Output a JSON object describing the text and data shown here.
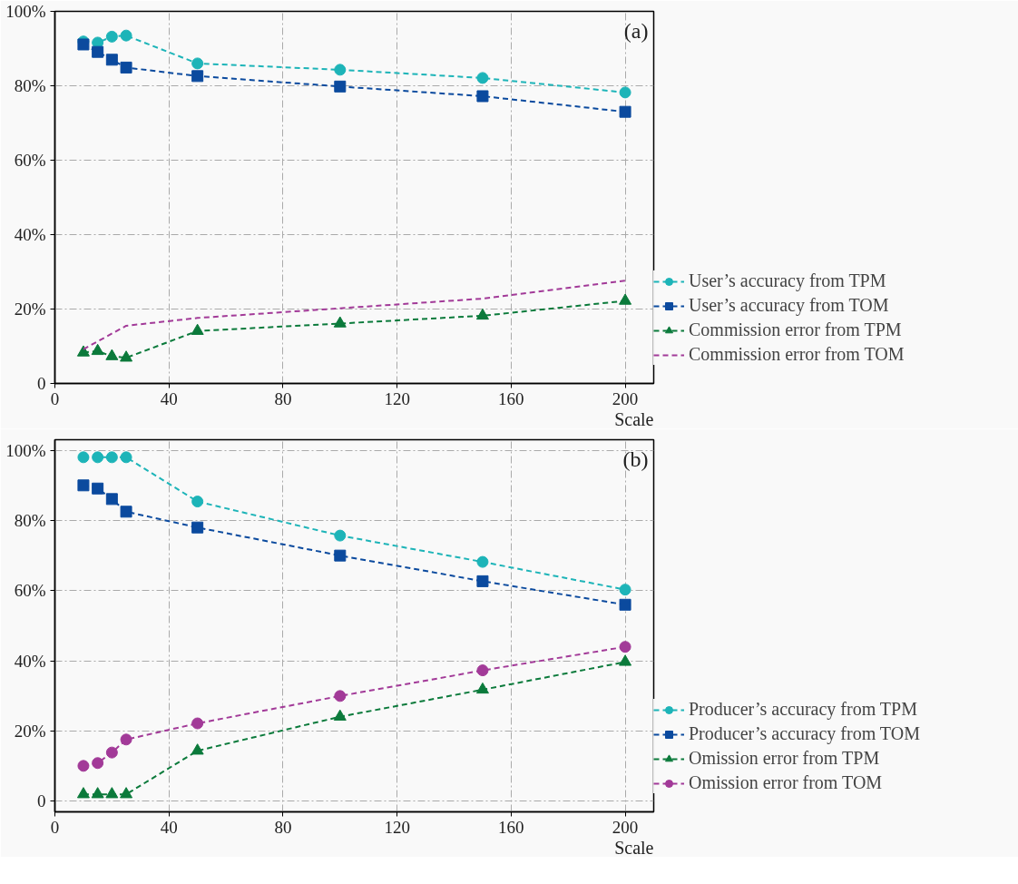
{
  "chart_data": [
    {
      "type": "line",
      "xlabel": "Scale",
      "annotations": [
        "(a)"
      ],
      "x": [
        10,
        15,
        20,
        25,
        50,
        100,
        150,
        200
      ],
      "xlim": [
        0,
        210
      ],
      "xticks": [
        0,
        40,
        80,
        120,
        160,
        200
      ],
      "ylim": [
        0,
        100
      ],
      "yticks": [
        0,
        {
          "value": 20,
          "label": "20%"
        },
        {
          "value": 40,
          "label": "40%"
        },
        {
          "value": 60,
          "label": "60%"
        },
        {
          "value": 80,
          "label": "80%"
        },
        {
          "value": 100,
          "label": "100%"
        }
      ],
      "grid": true,
      "legend": "right",
      "line_style": "dashed",
      "series": [
        {
          "name": "User’s accuracy from TPM",
          "color": "#1db4b8",
          "marker": "circle",
          "values": [
            91.9,
            91.6,
            93.2,
            93.5,
            86.0,
            84.3,
            82.1,
            78.2
          ]
        },
        {
          "name": "User’s accuracy from TOM",
          "color": "#0b4a9e",
          "marker": "square",
          "values": [
            91.1,
            89.1,
            87.0,
            84.9,
            82.6,
            79.8,
            77.2,
            73.0
          ]
        },
        {
          "name": "Commission error from TPM",
          "color": "#0b7a3b",
          "marker": "triangle",
          "values": [
            8.3,
            8.7,
            7.3,
            6.9,
            14.1,
            16.1,
            18.2,
            22.2
          ]
        },
        {
          "name": "Commission error from TOM",
          "color": "#a23a98",
          "marker": "none",
          "x": [
            10,
            25,
            50,
            100,
            150,
            200
          ],
          "values": [
            9.2,
            15.5,
            17.6,
            20.2,
            22.8,
            27.6
          ]
        }
      ]
    },
    {
      "type": "line",
      "xlabel": "Scale",
      "annotations": [
        "(b)"
      ],
      "x": [
        10,
        15,
        20,
        25,
        50,
        100,
        150,
        200
      ],
      "xlim": [
        0,
        210
      ],
      "xticks": [
        0,
        40,
        80,
        120,
        160,
        200
      ],
      "ylim": [
        -3,
        103
      ],
      "yticks": [
        0,
        {
          "value": 20,
          "label": "20%"
        },
        {
          "value": 40,
          "label": "40%"
        },
        {
          "value": 60,
          "label": "60%"
        },
        {
          "value": 80,
          "label": "80%"
        },
        {
          "value": 100,
          "label": "100%"
        }
      ],
      "grid": true,
      "legend": "right",
      "line_style": "dashed",
      "series": [
        {
          "name": "Producer’s accuracy from TPM",
          "color": "#1db4b8",
          "marker": "circle",
          "values": [
            98.0,
            98.0,
            98.0,
            98.0,
            85.4,
            75.7,
            68.2,
            60.3
          ]
        },
        {
          "name": "Producer’s accuracy from TOM",
          "color": "#0b4a9e",
          "marker": "square",
          "values": [
            90.0,
            89.1,
            86.1,
            82.5,
            78.0,
            70.0,
            62.7,
            56.0
          ]
        },
        {
          "name": "Omission error from TPM",
          "color": "#0b7a3b",
          "marker": "triangle",
          "values": [
            2.0,
            2.0,
            2.0,
            2.0,
            14.4,
            24.1,
            31.8,
            39.7
          ]
        },
        {
          "name": "Omission error from TOM",
          "color": "#a23a98",
          "marker": "circle",
          "values": [
            10.1,
            10.9,
            13.9,
            17.6,
            22.2,
            30.0,
            37.3,
            44.0
          ]
        }
      ]
    }
  ]
}
